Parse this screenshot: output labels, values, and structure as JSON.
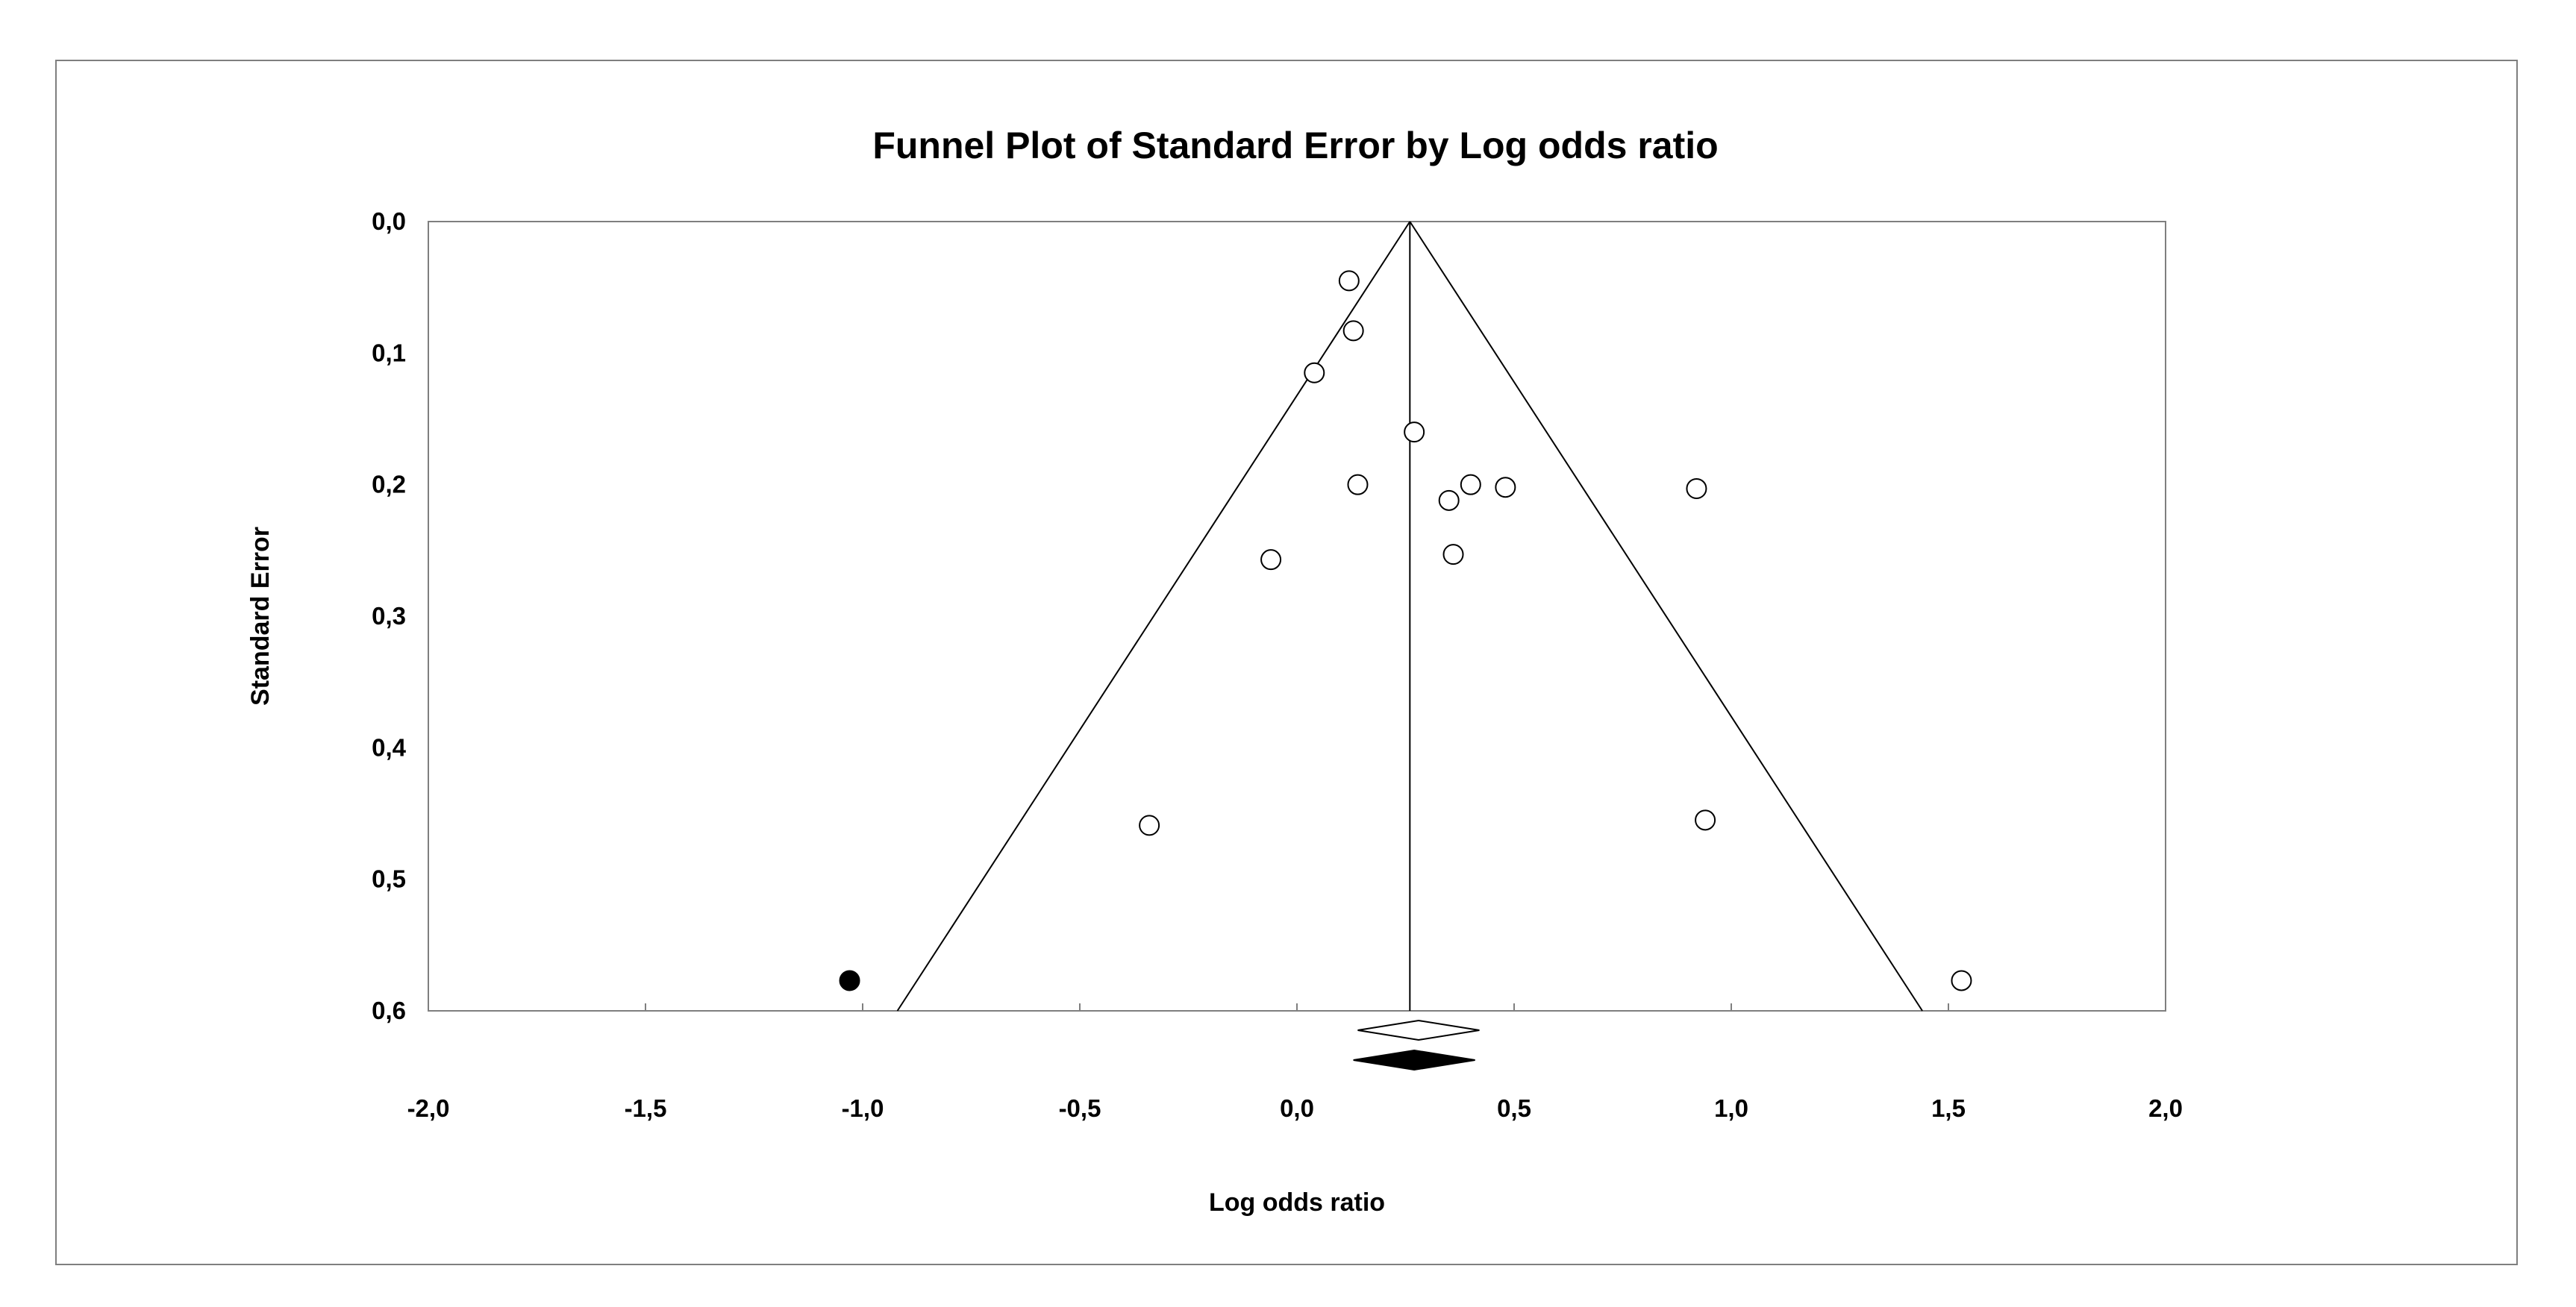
{
  "chart_data": {
    "type": "scatter",
    "title": "Funnel Plot of Standard Error by Log odds ratio",
    "xlabel": "Log odds ratio",
    "ylabel": "Standard Error",
    "xlim": [
      -2.0,
      2.0
    ],
    "ylim": [
      0.0,
      0.6
    ],
    "y_inverted": true,
    "x_ticks": [
      "-2,0",
      "-1,5",
      "-1,0",
      "-0,5",
      "0,0",
      "0,5",
      "1,0",
      "1,5",
      "2,0"
    ],
    "x_tick_values": [
      -2.0,
      -1.5,
      -1.0,
      -0.5,
      0.0,
      0.5,
      1.0,
      1.5,
      2.0
    ],
    "y_ticks": [
      "0,0",
      "0,1",
      "0,2",
      "0,3",
      "0,4",
      "0,5",
      "0,6"
    ],
    "y_tick_values": [
      0.0,
      0.1,
      0.2,
      0.3,
      0.4,
      0.5,
      0.6
    ],
    "grid": false,
    "funnel": {
      "center": 0.26,
      "apex_se": 0.0,
      "bottom_se": 0.6,
      "bottom_left": -0.92,
      "bottom_right": 1.44
    },
    "series": [
      {
        "marker": "open-circle",
        "x": [
          0.12,
          0.13,
          0.04,
          0.27,
          0.14,
          0.35,
          0.4,
          0.48,
          0.92,
          -0.06,
          0.36,
          -0.34,
          0.94,
          1.53
        ],
        "y": [
          0.045,
          0.083,
          0.115,
          0.16,
          0.2,
          0.212,
          0.2,
          0.202,
          0.203,
          0.257,
          0.253,
          0.459,
          0.455,
          0.577
        ]
      },
      {
        "marker": "filled-circle",
        "x": [
          -1.03
        ],
        "y": [
          0.577
        ]
      }
    ],
    "summary_diamonds": [
      {
        "style": "open",
        "center": 0.28,
        "low": 0.14,
        "high": 0.42
      },
      {
        "style": "filled",
        "center": 0.27,
        "low": 0.13,
        "high": 0.41
      }
    ]
  }
}
